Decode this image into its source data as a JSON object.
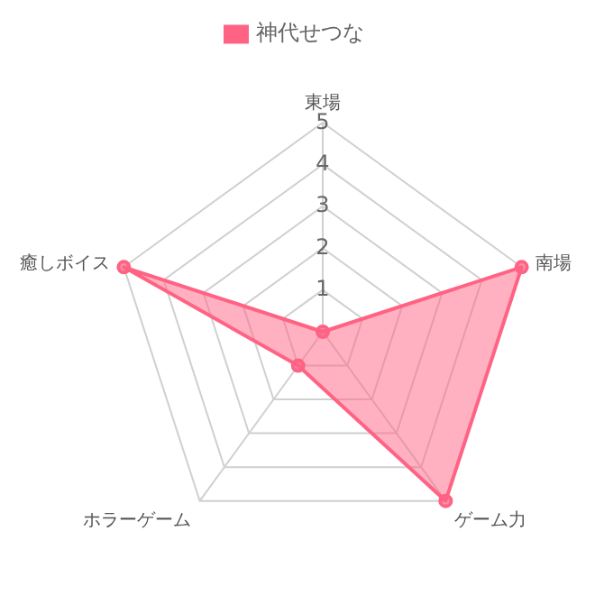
{
  "chart_data": {
    "type": "radar",
    "categories": [
      "東場",
      "南場",
      "ゲーム力",
      "ホラーゲーム",
      "癒しボイス"
    ],
    "series": [
      {
        "name": "神代せつな",
        "color": "#ff6384",
        "values": [
          0,
          5,
          5,
          1,
          5
        ]
      }
    ],
    "ylim": [
      0,
      5
    ],
    "yticks": [
      1,
      2,
      3,
      4,
      5
    ],
    "grid": true,
    "legend": "top",
    "marker": "circle"
  }
}
